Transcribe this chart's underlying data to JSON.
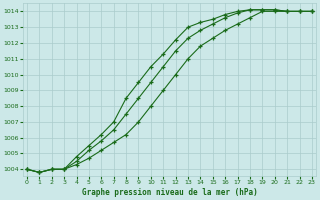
{
  "title": "Graphe pression niveau de la mer (hPa)",
  "bg_color": "#cce8e8",
  "line_color": "#1a6b1a",
  "grid_color": "#aacccc",
  "x_ticks": [
    0,
    1,
    2,
    3,
    4,
    5,
    6,
    7,
    8,
    9,
    10,
    11,
    12,
    13,
    14,
    15,
    16,
    17,
    18,
    19,
    20,
    21,
    22,
    23
  ],
  "y_ticks": [
    1004,
    1005,
    1006,
    1007,
    1008,
    1009,
    1010,
    1011,
    1012,
    1013,
    1014
  ],
  "ylim": [
    1003.6,
    1014.5
  ],
  "xlim": [
    -0.3,
    23.3
  ],
  "series1": [
    1004.0,
    1003.8,
    1004.0,
    1004.0,
    1004.3,
    1004.7,
    1005.2,
    1005.7,
    1006.2,
    1007.0,
    1008.0,
    1009.0,
    1010.0,
    1011.0,
    1011.8,
    1012.3,
    1012.8,
    1013.2,
    1013.6,
    1014.0,
    1014.0,
    1014.0,
    1014.0,
    1014.0
  ],
  "series2": [
    1004.0,
    1003.8,
    1004.0,
    1004.0,
    1004.5,
    1005.2,
    1005.8,
    1006.5,
    1007.5,
    1008.5,
    1009.5,
    1010.5,
    1011.5,
    1012.3,
    1012.8,
    1013.2,
    1013.6,
    1013.9,
    1014.1,
    1014.1,
    1014.1,
    1014.0,
    1014.0,
    1014.0
  ],
  "series3": [
    1004.0,
    1003.8,
    1004.0,
    1004.0,
    1004.8,
    1005.5,
    1006.2,
    1007.0,
    1008.5,
    1009.5,
    1010.5,
    1011.3,
    1012.2,
    1013.0,
    1013.3,
    1013.5,
    1013.8,
    1014.0,
    1014.1,
    1014.1,
    1014.1,
    1014.0,
    1014.0,
    1014.0
  ]
}
